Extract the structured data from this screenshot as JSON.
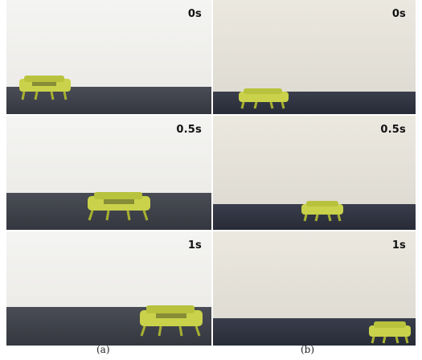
{
  "columns": [
    {
      "caption": "(a)",
      "frames": [
        {
          "time": "0s"
        },
        {
          "time": "0.5s"
        },
        {
          "time": "1s"
        }
      ]
    },
    {
      "caption": "(b)",
      "frames": [
        {
          "time": "0s"
        },
        {
          "time": "0.5s"
        },
        {
          "time": "1s"
        }
      ]
    }
  ],
  "colors": {
    "robot": "#c9d24a",
    "floor_a": "#3d4048",
    "floor_b": "#2e3240",
    "wall_a": "#f1f1ef",
    "wall_b": "#e7e4dc"
  }
}
